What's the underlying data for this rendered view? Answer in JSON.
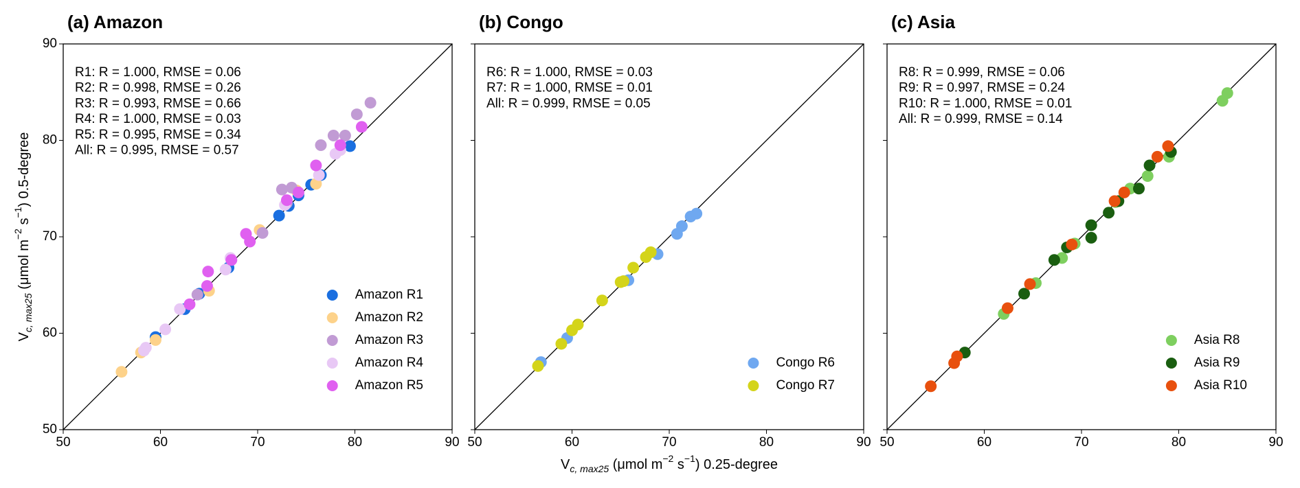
{
  "chart_data": [
    {
      "type": "scatter",
      "title": "(a) Amazon",
      "y_label": [
        "V",
        "c, max25",
        " (μmol m",
        "−2",
        " s",
        "−1",
        ") 0.5-degree"
      ],
      "annotations": [
        "R1: R = 1.000, RMSE = 0.06",
        "R2: R = 0.998, RMSE = 0.26",
        "R3: R = 0.993, RMSE = 0.66",
        "R4: R = 1.000, RMSE = 0.03",
        "R5: R = 0.995, RMSE = 0.34",
        "All: R = 0.995, RMSE = 0.57"
      ],
      "xlim": [
        50,
        90
      ],
      "ylim": [
        50,
        90
      ],
      "xticks": [
        50,
        60,
        70,
        80,
        90
      ],
      "yticks": [
        50,
        60,
        70,
        80,
        90
      ],
      "ytick_labels": true,
      "legend": "lower right",
      "series": [
        {
          "name": "Amazon R1",
          "color": "#1a6fe0",
          "x": [
            59.5,
            62.5,
            64,
            67,
            72.2,
            73.2,
            74.2,
            75.5,
            76.5,
            79.5
          ],
          "values": [
            59.6,
            62.5,
            64.1,
            66.8,
            72.2,
            73.2,
            74.3,
            75.4,
            76.4,
            79.4
          ]
        },
        {
          "name": "Amazon R2",
          "color": "#fdd28a",
          "x": [
            56,
            58,
            59.5,
            65,
            70.2,
            74,
            76,
            78.5
          ],
          "values": [
            56,
            58,
            59.3,
            64.4,
            70.7,
            74.8,
            75.5,
            79
          ]
        },
        {
          "name": "Amazon R3",
          "color": "#c19bd4",
          "x": [
            63.8,
            70.5,
            72.5,
            73,
            73.5,
            76.5,
            77.8,
            79,
            80.2,
            81.6
          ],
          "values": [
            64,
            70.4,
            74.9,
            73.5,
            75.1,
            79.5,
            80.5,
            80.5,
            82.7,
            83.9
          ]
        },
        {
          "name": "Amazon R4",
          "color": "#e8c8f5",
          "x": [
            58.3,
            58.5,
            60.5,
            62,
            66.7,
            67.2,
            72.8,
            76.3,
            78,
            78.5
          ],
          "values": [
            58.2,
            58.5,
            60.4,
            62.5,
            66.6,
            67.8,
            73.3,
            76.4,
            78.6,
            79
          ]
        },
        {
          "name": "Amazon R5",
          "color": "#e060f0",
          "x": [
            63,
            64.8,
            64.9,
            67.3,
            68.8,
            69.2,
            73,
            74.2,
            76,
            78.5,
            80.7
          ],
          "values": [
            63,
            64.9,
            66.4,
            67.6,
            70.3,
            69.5,
            73.8,
            74.6,
            77.4,
            79.5,
            81.4
          ]
        }
      ]
    },
    {
      "type": "scatter",
      "title": "(b) Congo",
      "x_label": [
        "V",
        "c, max25",
        " (μmol m",
        "−2",
        " s",
        "−1",
        ") 0.25-degree"
      ],
      "annotations": [
        "R6: R = 1.000, RMSE = 0.03",
        "R7: R = 1.000, RMSE = 0.01",
        "All: R = 0.999, RMSE = 0.05"
      ],
      "xlim": [
        50,
        90
      ],
      "ylim": [
        50,
        90
      ],
      "xticks": [
        50,
        60,
        70,
        80,
        90
      ],
      "yticks": [
        50,
        60,
        70,
        80,
        90
      ],
      "ytick_labels": false,
      "legend": "lower right",
      "series": [
        {
          "name": "Congo R6",
          "color": "#6fa8f0",
          "x": [
            56.8,
            59.5,
            65.8,
            68.8,
            70.8,
            71.3,
            72.2,
            72.8
          ],
          "values": [
            57,
            59.5,
            65.5,
            68.2,
            70.3,
            71.1,
            72.1,
            72.4
          ]
        },
        {
          "name": "Congo R7",
          "color": "#d4d41a",
          "x": [
            56.5,
            58.9,
            60,
            60.6,
            63.1,
            65,
            65.3,
            66.3,
            67.6,
            68.1
          ],
          "values": [
            56.6,
            58.9,
            60.3,
            60.9,
            63.4,
            65.3,
            65.4,
            66.8,
            67.9,
            68.4
          ]
        }
      ]
    },
    {
      "type": "scatter",
      "title": "(c) Asia",
      "annotations": [
        "R8: R = 0.999, RMSE = 0.06",
        "R9: R = 0.997, RMSE = 0.24",
        "R10: R = 1.000, RMSE = 0.01",
        "All: R = 0.999, RMSE = 0.14"
      ],
      "xlim": [
        50,
        90
      ],
      "ylim": [
        50,
        90
      ],
      "xticks": [
        50,
        60,
        70,
        80,
        90
      ],
      "yticks": [
        50,
        60,
        70,
        80,
        90
      ],
      "ytick_labels": false,
      "legend": "lower right",
      "series": [
        {
          "name": "Asia R8",
          "color": "#7ecf5f",
          "x": [
            62,
            65.3,
            68,
            69.3,
            73.5,
            75,
            76.8,
            79,
            84.5,
            85
          ],
          "values": [
            62,
            65.2,
            67.8,
            69.3,
            73.6,
            75,
            76.3,
            78.3,
            84.1,
            84.9
          ]
        },
        {
          "name": "Asia R9",
          "color": "#1a5e10",
          "x": [
            58,
            64.1,
            67.2,
            68.5,
            71,
            71,
            72.8,
            73.8,
            75.9,
            77,
            79.2
          ],
          "values": [
            58,
            64.1,
            67.6,
            68.9,
            71.2,
            69.9,
            72.5,
            73.7,
            75,
            77.4,
            78.8
          ]
        },
        {
          "name": "Asia R10",
          "color": "#e8500e",
          "x": [
            54.5,
            56.9,
            57.2,
            62.4,
            64.7,
            69,
            73.4,
            74.4,
            77.8,
            78.9
          ],
          "values": [
            54.5,
            56.9,
            57.6,
            62.6,
            65.1,
            69.2,
            73.7,
            74.6,
            78.3,
            79.4
          ]
        }
      ]
    }
  ]
}
